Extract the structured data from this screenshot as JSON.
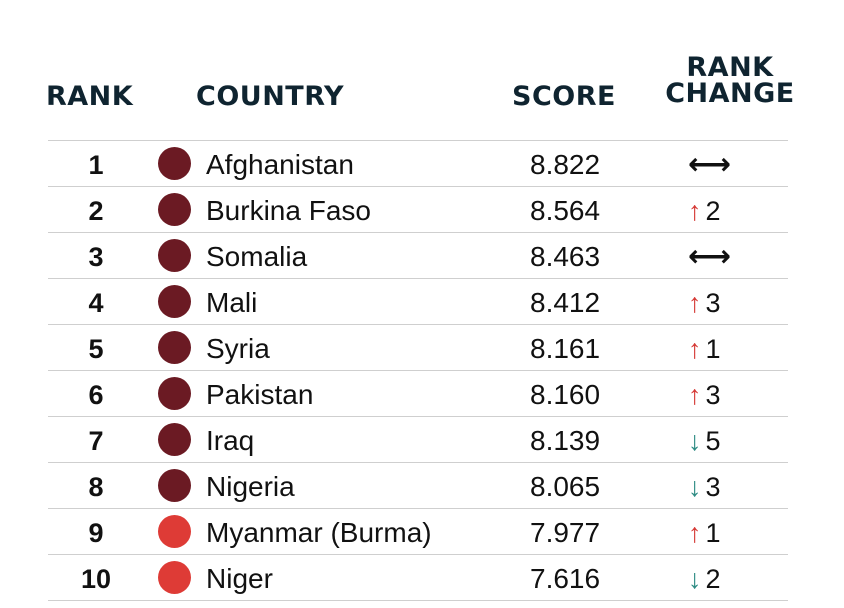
{
  "headers": {
    "rank": "RANK",
    "country": "COUNTRY",
    "score": "SCORE",
    "change_line1": "RANK",
    "change_line2": "CHANGE"
  },
  "colors": {
    "very_high": "#6b1a23",
    "high": "#de3b36",
    "up_arrow": "#d63a36",
    "down_arrow": "#2f8c84"
  },
  "rows": [
    {
      "rank": "1",
      "country": "Afghanistan",
      "score": "8.822",
      "level": "very_high",
      "change_dir": "flat",
      "change_glyph": "⟷",
      "change_val": ""
    },
    {
      "rank": "2",
      "country": "Burkina Faso",
      "score": "8.564",
      "level": "very_high",
      "change_dir": "up",
      "change_glyph": "↑",
      "change_val": "2"
    },
    {
      "rank": "3",
      "country": "Somalia",
      "score": "8.463",
      "level": "very_high",
      "change_dir": "flat",
      "change_glyph": "⟷",
      "change_val": ""
    },
    {
      "rank": "4",
      "country": "Mali",
      "score": "8.412",
      "level": "very_high",
      "change_dir": "up",
      "change_glyph": "↑",
      "change_val": "3"
    },
    {
      "rank": "5",
      "country": "Syria",
      "score": "8.161",
      "level": "very_high",
      "change_dir": "up",
      "change_glyph": "↑",
      "change_val": "1"
    },
    {
      "rank": "6",
      "country": "Pakistan",
      "score": "8.160",
      "level": "very_high",
      "change_dir": "up",
      "change_glyph": "↑",
      "change_val": "3"
    },
    {
      "rank": "7",
      "country": "Iraq",
      "score": "8.139",
      "level": "very_high",
      "change_dir": "down",
      "change_glyph": "↓",
      "change_val": "5"
    },
    {
      "rank": "8",
      "country": "Nigeria",
      "score": "8.065",
      "level": "very_high",
      "change_dir": "down",
      "change_glyph": "↓",
      "change_val": "3"
    },
    {
      "rank": "9",
      "country": "Myanmar (Burma)",
      "score": "7.977",
      "level": "high",
      "change_dir": "up",
      "change_glyph": "↑",
      "change_val": "1"
    },
    {
      "rank": "10",
      "country": "Niger",
      "score": "7.616",
      "level": "high",
      "change_dir": "down",
      "change_glyph": "↓",
      "change_val": "2"
    }
  ]
}
